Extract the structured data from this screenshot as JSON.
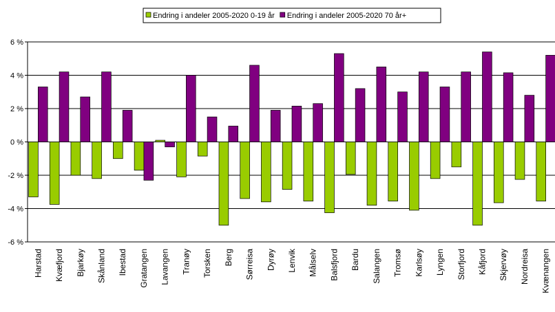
{
  "chart_data": {
    "type": "bar",
    "categories": [
      "Harstad",
      "Kvæfjord",
      "Bjarkøy",
      "Skånland",
      "Ibestad",
      "Gratangen",
      "Lavangen",
      "Tranøy",
      "Torsken",
      "Berg",
      "Sørreisa",
      "Dyrøy",
      "Lenvik",
      "Målselv",
      "Balsfjord",
      "Bardu",
      "Salangen",
      "Tromsø",
      "Karlsøy",
      "Lyngen",
      "Storfjord",
      "Kåfjord",
      "Skjervøy",
      "Nordreisa",
      "Kvænangen"
    ],
    "series": [
      {
        "name": "Endring i andeler 2005-2020 0-19 år",
        "color": "#99cc00",
        "values": [
          -3.3,
          -3.75,
          -2.0,
          -2.2,
          -1.0,
          -1.7,
          0.1,
          -2.1,
          -0.85,
          -5.0,
          -3.4,
          -3.6,
          -2.85,
          -3.55,
          -4.25,
          -1.95,
          -3.8,
          -3.55,
          -4.1,
          -2.2,
          -1.5,
          -5.0,
          -3.65,
          -2.25,
          -3.55
        ]
      },
      {
        "name": "Endring i andeler 2005-2020 70 år+",
        "color": "#800080",
        "values": [
          3.3,
          4.2,
          2.7,
          4.2,
          1.9,
          -2.3,
          -0.3,
          4.0,
          1.5,
          0.95,
          4.6,
          1.9,
          2.15,
          2.3,
          5.3,
          3.2,
          4.5,
          3.0,
          4.2,
          3.3,
          4.2,
          5.4,
          4.15,
          2.8,
          5.2
        ]
      }
    ],
    "ylim": [
      -6,
      6
    ],
    "yticks": [
      {
        "value": -6,
        "label": "-6 %"
      },
      {
        "value": -4,
        "label": "-4 %"
      },
      {
        "value": -2,
        "label": "-2 %"
      },
      {
        "value": 0,
        "label": "0 %"
      },
      {
        "value": 2,
        "label": "2 %"
      },
      {
        "value": 4,
        "label": "4 %"
      },
      {
        "value": 6,
        "label": "6 %"
      }
    ],
    "grid": true
  }
}
